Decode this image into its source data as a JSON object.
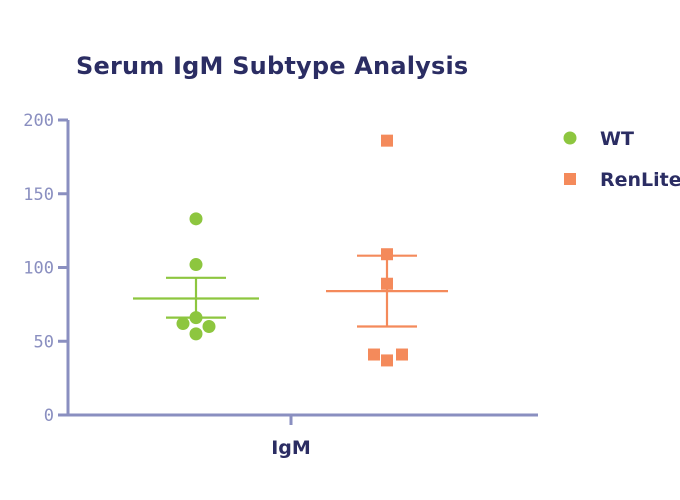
{
  "chart_data": {
    "type": "scatter",
    "title": "Serum IgM Subtype Analysis",
    "categories": [
      "IgM"
    ],
    "xlabel": "",
    "ylabel": "",
    "ylim": [
      0,
      200
    ],
    "yticks": [
      "0",
      "50",
      "100",
      "150",
      "200"
    ],
    "grid": false,
    "legend_position": "right",
    "axis_color": "#8a8fc0",
    "series": [
      {
        "name": "WT",
        "color": "#8dc63f",
        "marker": "circle",
        "values": [
          133,
          102,
          66,
          62,
          60,
          55
        ],
        "mean": 79,
        "error_upper": 93,
        "error_lower": 66
      },
      {
        "name": "RenLite",
        "color": "#f48a5b",
        "marker": "square",
        "values": [
          186,
          109,
          89,
          41,
          41,
          37
        ],
        "mean": 84,
        "error_upper": 108,
        "error_lower": 60
      }
    ]
  }
}
